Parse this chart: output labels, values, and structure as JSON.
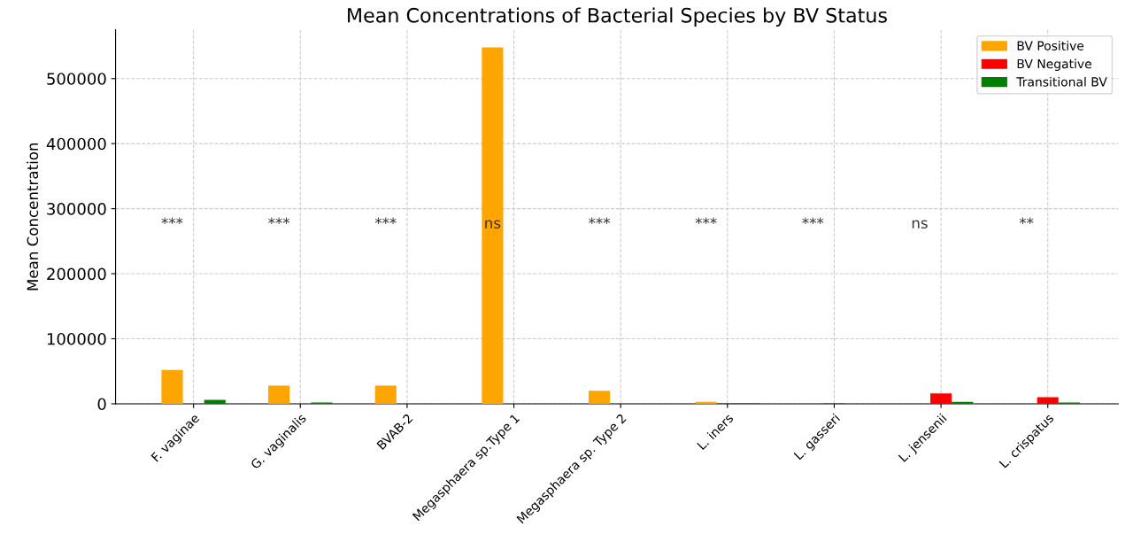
{
  "chart_data": {
    "type": "bar",
    "title": "Mean Concentrations of Bacterial Species by BV Status",
    "ylabel": "Mean Concentration",
    "categories": [
      "F. vaginae",
      "G. vaginalis",
      "BVAB-2",
      "Megasphaera sp.Type 1",
      "Megasphaera sp. Type 2",
      "L. iners",
      "L. gasseri",
      "L. jensenii",
      "L. crispatus"
    ],
    "series": [
      {
        "name": "BV Positive",
        "color": "#ffa500",
        "values": [
          52000,
          28000,
          28000,
          548000,
          20000,
          3000,
          0,
          0,
          0
        ]
      },
      {
        "name": "BV Negative",
        "color": "#ff0000",
        "values": [
          0,
          0,
          0,
          0,
          0,
          1000,
          1000,
          16000,
          10000
        ]
      },
      {
        "name": "Transitional BV",
        "color": "#008000",
        "values": [
          6000,
          2000,
          0,
          0,
          0,
          1000,
          0,
          3000,
          2000
        ]
      }
    ],
    "ylim": [
      0,
      575000
    ],
    "yticks": [
      0,
      100000,
      200000,
      300000,
      400000,
      500000
    ],
    "grid": true,
    "legend": "top right",
    "annotations": [
      "***",
      "***",
      "***",
      "ns",
      "***",
      "***",
      "***",
      "ns",
      "**"
    ]
  }
}
